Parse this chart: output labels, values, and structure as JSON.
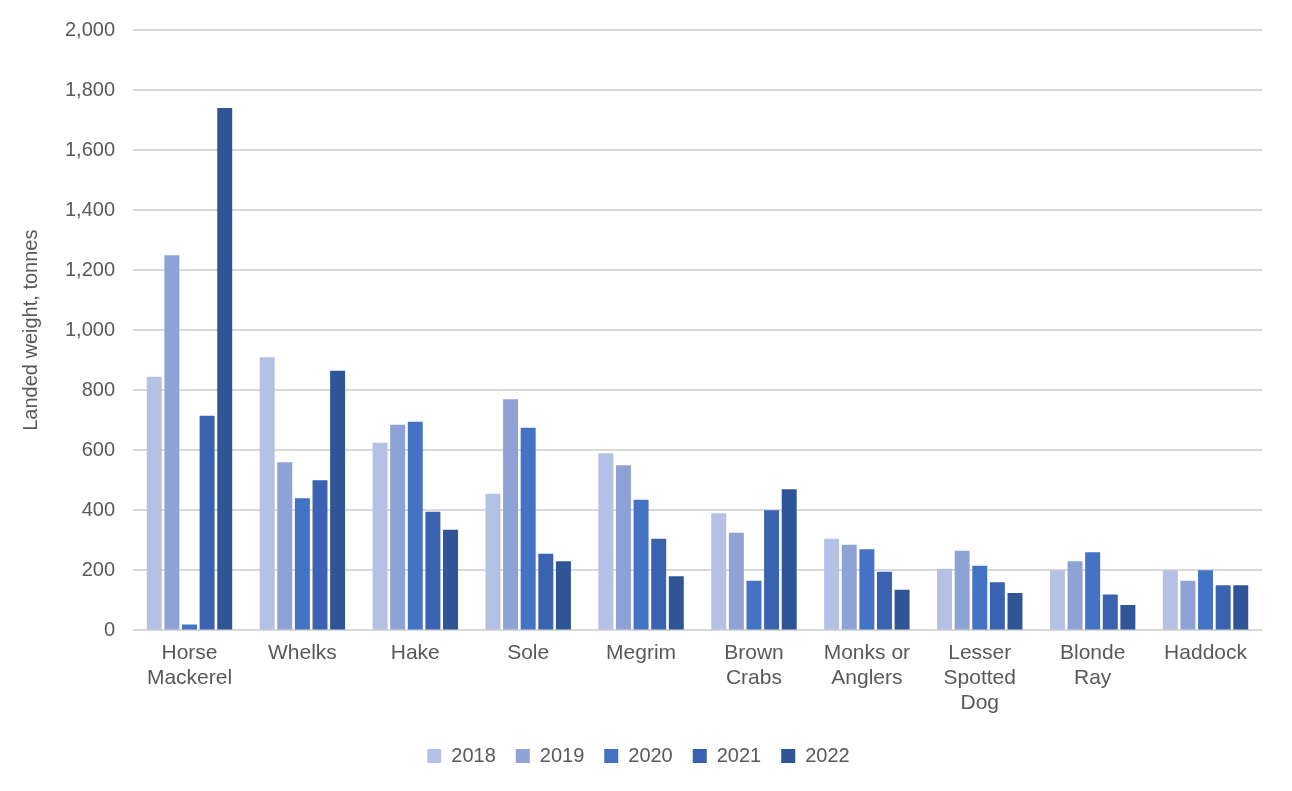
{
  "chart_data": {
    "type": "bar",
    "ylabel": "Landed weight, tonnes",
    "categories": [
      "Horse Mackerel",
      "Whelks",
      "Hake",
      "Sole",
      "Megrim",
      "Brown Crabs",
      "Monks or Anglers",
      "Lesser Spotted Dog",
      "Blonde Ray",
      "Haddock"
    ],
    "series": [
      {
        "name": "2018",
        "color": "#b4c0e4",
        "values": [
          845,
          910,
          625,
          455,
          590,
          390,
          305,
          205,
          200,
          200
        ]
      },
      {
        "name": "2019",
        "color": "#8ea2d6",
        "values": [
          1250,
          560,
          685,
          770,
          550,
          325,
          285,
          265,
          230,
          165
        ]
      },
      {
        "name": "2020",
        "color": "#4472c4",
        "values": [
          20,
          440,
          695,
          675,
          435,
          165,
          270,
          215,
          260,
          200
        ]
      },
      {
        "name": "2021",
        "color": "#3a62b0",
        "values": [
          715,
          500,
          395,
          255,
          305,
          400,
          195,
          160,
          120,
          150
        ]
      },
      {
        "name": "2022",
        "color": "#2f5597",
        "values": [
          1740,
          865,
          335,
          230,
          180,
          470,
          135,
          125,
          85,
          150
        ]
      }
    ],
    "ylim": [
      0,
      2000
    ],
    "yticks": [
      0,
      200,
      400,
      600,
      800,
      {
        "value": 1000,
        "label": "1,000"
      },
      {
        "value": 1200,
        "label": "1,200"
      },
      {
        "value": 1400,
        "label": "1,400"
      },
      {
        "value": 1600,
        "label": "1,600"
      },
      {
        "value": 1800,
        "label": "1,800"
      },
      {
        "value": 2000,
        "label": "2,000"
      }
    ],
    "grid": "y",
    "legend": "bottom"
  }
}
